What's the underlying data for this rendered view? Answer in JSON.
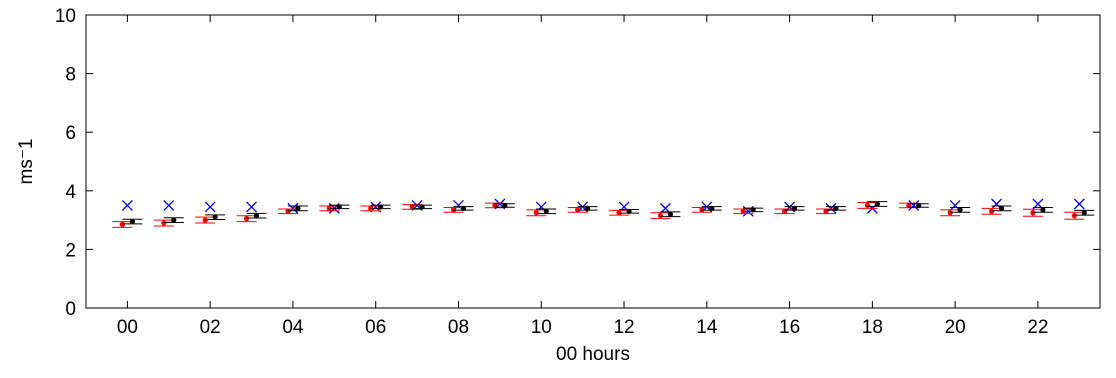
{
  "chart_data": {
    "type": "scatter",
    "title": "",
    "xlabel": "00 hours",
    "ylabel": "ms⁻1",
    "xlim": [
      -1,
      23.5
    ],
    "ylim": [
      0,
      10
    ],
    "xticks": [
      0,
      2,
      4,
      6,
      8,
      10,
      12,
      14,
      16,
      18,
      20,
      22
    ],
    "xtick_labels": [
      "00",
      "02",
      "04",
      "06",
      "08",
      "10",
      "12",
      "14",
      "16",
      "18",
      "20",
      "22"
    ],
    "yticks": [
      0,
      2,
      4,
      6,
      8,
      10
    ],
    "ytick_labels": [
      "0",
      "2",
      "4",
      "6",
      "8",
      "10"
    ],
    "grid": false,
    "legend": "none",
    "x": [
      0,
      1,
      2,
      3,
      4,
      5,
      6,
      7,
      8,
      9,
      10,
      11,
      12,
      13,
      14,
      15,
      16,
      17,
      18,
      19,
      20,
      21,
      22,
      23
    ],
    "series": [
      {
        "marker": "x",
        "color": "#0000ff",
        "values": [
          3.5,
          3.5,
          3.45,
          3.45,
          3.4,
          3.4,
          3.45,
          3.5,
          3.5,
          3.55,
          3.45,
          3.45,
          3.45,
          3.4,
          3.45,
          3.3,
          3.45,
          3.4,
          3.4,
          3.5,
          3.5,
          3.55,
          3.55,
          3.55
        ]
      },
      {
        "marker": "dot-errorbar",
        "color": "#ff0000",
        "values": [
          2.85,
          2.9,
          3.0,
          3.05,
          3.3,
          3.4,
          3.4,
          3.45,
          3.35,
          3.5,
          3.25,
          3.35,
          3.25,
          3.15,
          3.35,
          3.3,
          3.3,
          3.3,
          3.5,
          3.5,
          3.25,
          3.3,
          3.25,
          3.15
        ],
        "error": [
          0.1,
          0.1,
          0.1,
          0.1,
          0.08,
          0.08,
          0.08,
          0.08,
          0.08,
          0.08,
          0.1,
          0.08,
          0.08,
          0.1,
          0.08,
          0.08,
          0.08,
          0.08,
          0.1,
          0.08,
          0.1,
          0.1,
          0.12,
          0.12
        ]
      },
      {
        "marker": "dot-errorbar",
        "color": "#000000",
        "values": [
          2.95,
          3.0,
          3.1,
          3.15,
          3.4,
          3.45,
          3.45,
          3.45,
          3.4,
          3.5,
          3.3,
          3.4,
          3.3,
          3.2,
          3.4,
          3.35,
          3.4,
          3.4,
          3.55,
          3.5,
          3.35,
          3.4,
          3.35,
          3.25
        ],
        "error": [
          0.08,
          0.08,
          0.08,
          0.08,
          0.08,
          0.06,
          0.06,
          0.06,
          0.06,
          0.06,
          0.08,
          0.06,
          0.06,
          0.08,
          0.06,
          0.06,
          0.06,
          0.06,
          0.08,
          0.06,
          0.08,
          0.08,
          0.08,
          0.08
        ]
      }
    ]
  }
}
